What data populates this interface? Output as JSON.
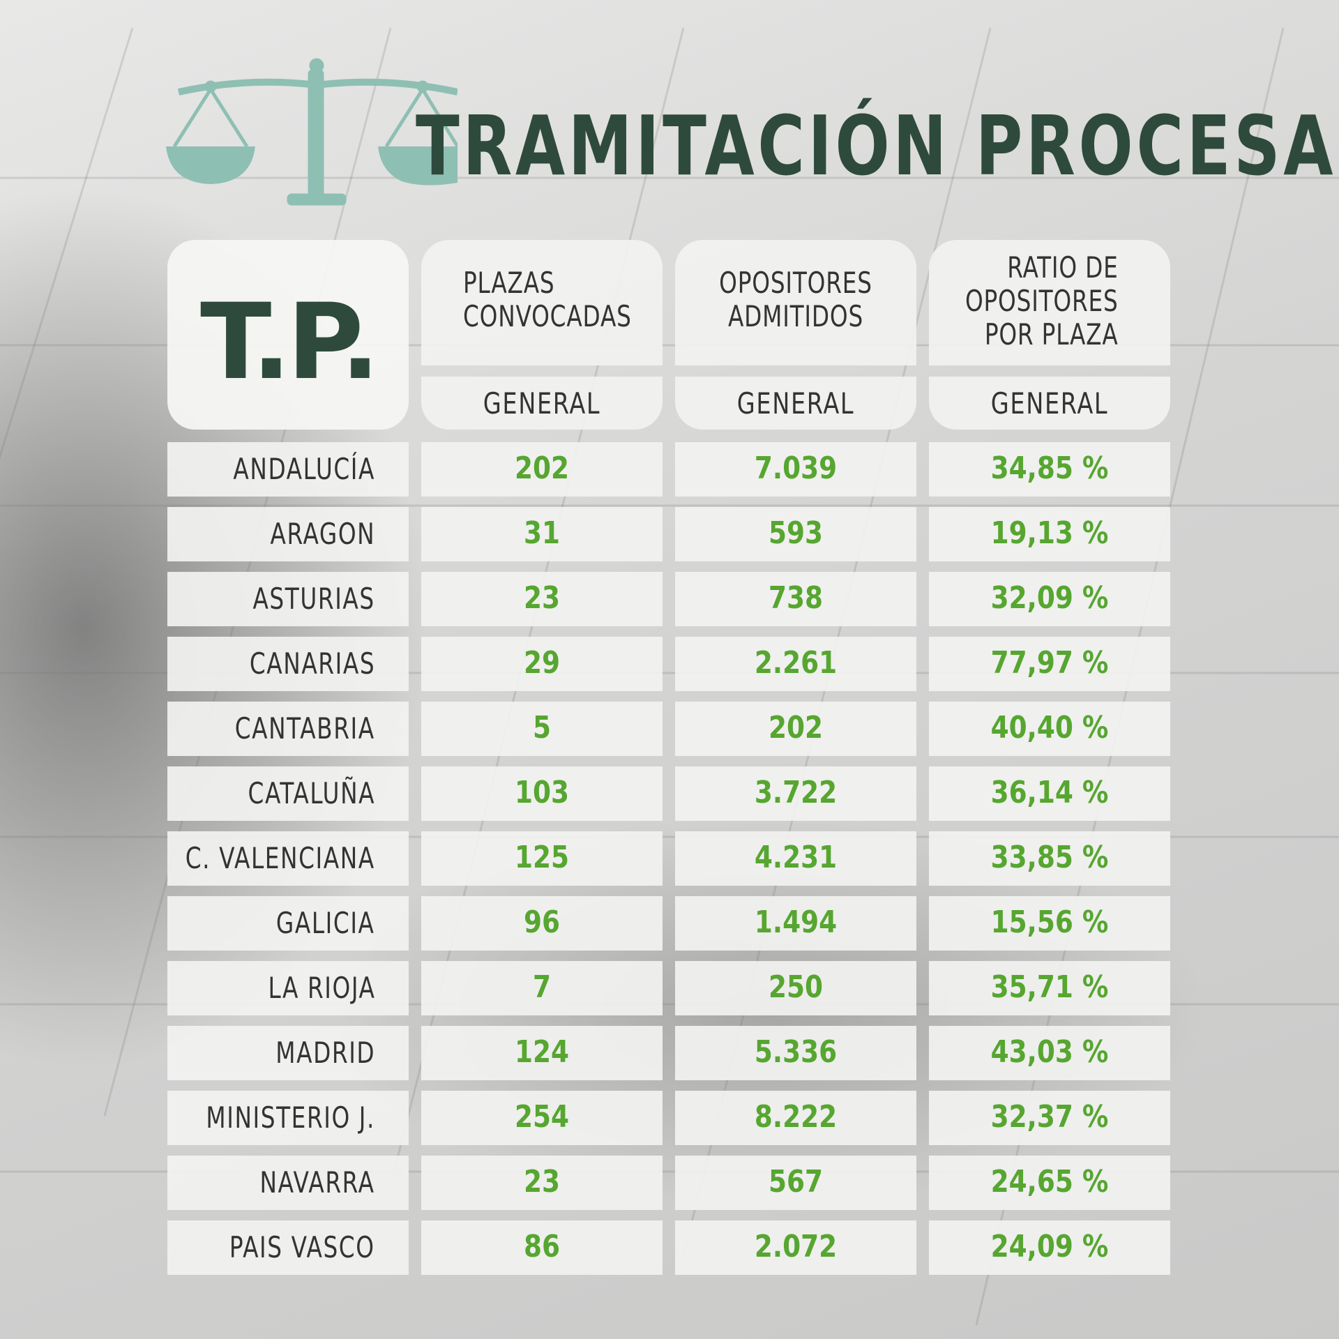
{
  "header": {
    "title": "TRAMITACIÓN PROCESAL",
    "logo_icon": "scales-of-justice-icon",
    "logo_color": "#8ebfb3",
    "title_color": "#2e4a3c"
  },
  "table": {
    "corner_label": "T.P.",
    "columns": [
      {
        "heading": "PLAZAS\nCONVOCADAS",
        "sub": "GENERAL",
        "align": "left"
      },
      {
        "heading": "OPOSITORES\nADMITIDOS",
        "sub": "GENERAL",
        "align": "center"
      },
      {
        "heading": "RATIO DE\nOPOSITORES\nPOR PLAZA",
        "sub": "GENERAL",
        "align": "right"
      }
    ],
    "value_color": "#56a630",
    "rows": [
      {
        "name": "ANDALUCÍA",
        "plazas": "202",
        "opositores": "7.039",
        "ratio": "34,85 %"
      },
      {
        "name": "ARAGON",
        "plazas": "31",
        "opositores": "593",
        "ratio": "19,13 %"
      },
      {
        "name": "ASTURIAS",
        "plazas": "23",
        "opositores": "738",
        "ratio": "32,09 %"
      },
      {
        "name": "CANARIAS",
        "plazas": "29",
        "opositores": "2.261",
        "ratio": "77,97 %"
      },
      {
        "name": "CANTABRIA",
        "plazas": "5",
        "opositores": "202",
        "ratio": "40,40 %"
      },
      {
        "name": "CATALUÑA",
        "plazas": "103",
        "opositores": "3.722",
        "ratio": "36,14 %"
      },
      {
        "name": "C. VALENCIANA",
        "plazas": "125",
        "opositores": "4.231",
        "ratio": "33,85 %"
      },
      {
        "name": "GALICIA",
        "plazas": "96",
        "opositores": "1.494",
        "ratio": "15,56 %"
      },
      {
        "name": "LA RIOJA",
        "plazas": "7",
        "opositores": "250",
        "ratio": "35,71 %"
      },
      {
        "name": "MADRID",
        "plazas": "124",
        "opositores": "5.336",
        "ratio": "43,03 %"
      },
      {
        "name": "MINISTERIO J.",
        "plazas": "254",
        "opositores": "8.222",
        "ratio": "32,37 %"
      },
      {
        "name": "NAVARRA",
        "plazas": "23",
        "opositores": "567",
        "ratio": "24,65 %"
      },
      {
        "name": "PAIS VASCO",
        "plazas": "86",
        "opositores": "2.072",
        "ratio": "24,09 %"
      }
    ]
  }
}
